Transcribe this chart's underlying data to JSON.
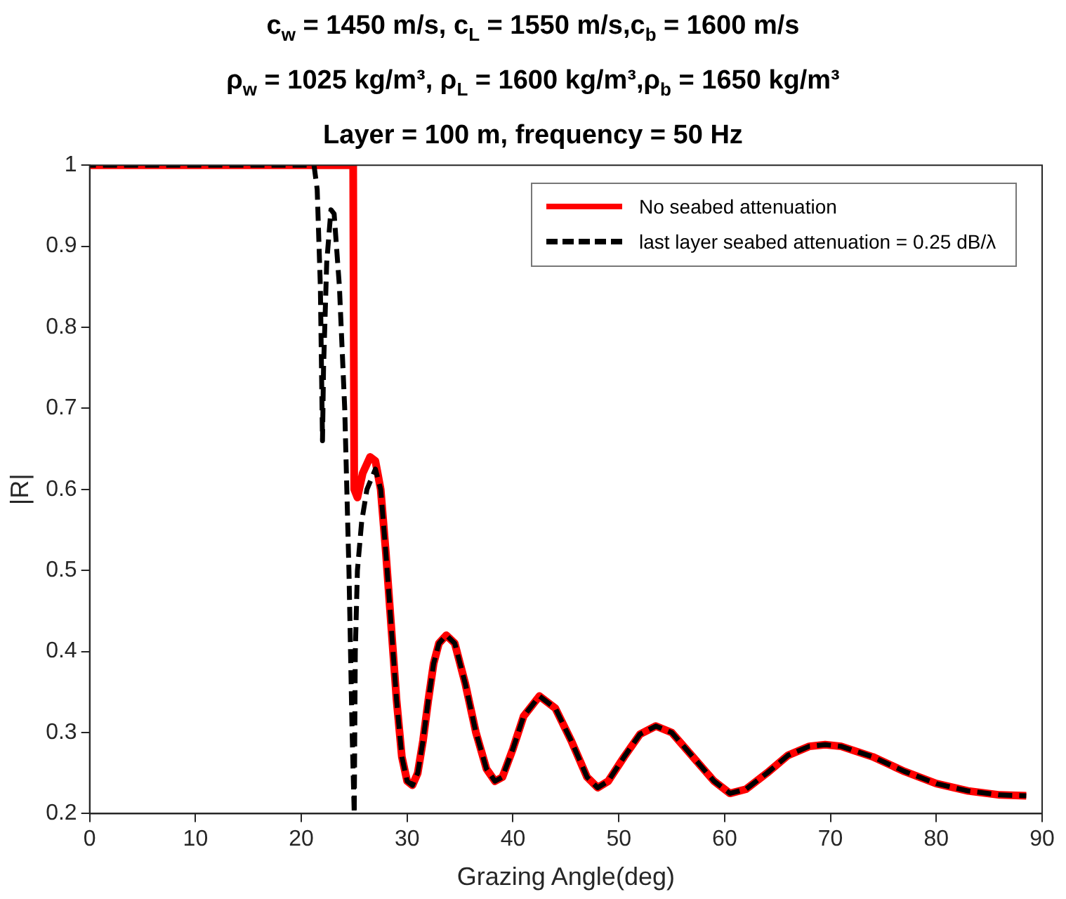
{
  "chart_data": {
    "type": "line",
    "title": "c$_{w}$ = 1450 m/s, c$_{L}$ = 1550 m/s,c$_{b}$ = 1600 m/s\nρ$_{w}$ = 1025 kg/m³, ρ$_{L}$ = 1600 kg/m³,ρ$_{b}$ = 1650 kg/m³\nLayer = 100 m, frequency = 50 Hz",
    "xlabel": "Grazing Angle(deg)",
    "ylabel": "|R|",
    "xlim": [
      0,
      90
    ],
    "xticks": [
      0,
      10,
      20,
      30,
      40,
      50,
      60,
      70,
      80,
      90
    ],
    "ylim": [
      0.2,
      1
    ],
    "yticks": [
      0.2,
      0.3,
      0.4,
      0.5,
      0.6,
      0.7,
      0.8,
      0.9,
      1
    ],
    "grid": false,
    "legend": "top right",
    "marker": "none",
    "series": [
      {
        "name": "No seabed attenuation",
        "color": "#ff0000",
        "line_style": "solid",
        "x": [
          0,
          24.9,
          25,
          25.3,
          25.8,
          26.5,
          27,
          27.5,
          28,
          28.5,
          29,
          29.5,
          30,
          30.5,
          31,
          31.5,
          32,
          32.5,
          33,
          33.7,
          34.5,
          35.5,
          36.5,
          37.5,
          38.3,
          39,
          40,
          41,
          42.5,
          44,
          45.5,
          47,
          48,
          49,
          50.5,
          52,
          53.5,
          55,
          57,
          59,
          60.5,
          62,
          64,
          66,
          68,
          69.5,
          71,
          74,
          77,
          80,
          83,
          86,
          88.5
        ],
        "values": [
          1,
          1,
          0.6,
          0.59,
          0.62,
          0.64,
          0.635,
          0.6,
          0.52,
          0.43,
          0.34,
          0.27,
          0.24,
          0.235,
          0.25,
          0.29,
          0.34,
          0.385,
          0.41,
          0.42,
          0.41,
          0.36,
          0.3,
          0.255,
          0.24,
          0.245,
          0.28,
          0.32,
          0.345,
          0.33,
          0.29,
          0.245,
          0.232,
          0.24,
          0.27,
          0.298,
          0.308,
          0.3,
          0.27,
          0.24,
          0.225,
          0.23,
          0.25,
          0.272,
          0.283,
          0.285,
          0.283,
          0.27,
          0.252,
          0.237,
          0.228,
          0.223,
          0.222
        ]
      },
      {
        "name": "last layer seabed attenuation = 0.25 dB/λ",
        "color": "#000000",
        "line_style": "dashed",
        "x": [
          0,
          21.2,
          21.5,
          21.8,
          22,
          22.1,
          22.4,
          22.8,
          23.1,
          23.6,
          24.1,
          24.5,
          24.8,
          25,
          25.1,
          25.3,
          25.7,
          26.2,
          27,
          27.5,
          28,
          28.5,
          29,
          29.5,
          30,
          30.5,
          31,
          31.5,
          32,
          32.5,
          33,
          33.7,
          34.5,
          35.5,
          36.5,
          37.5,
          38.3,
          39,
          40,
          41,
          42.5,
          44,
          45.5,
          47,
          48,
          49,
          50.5,
          52,
          53.5,
          55,
          57,
          59,
          60.5,
          62,
          64,
          66,
          68,
          69.5,
          71,
          74,
          77,
          80,
          83,
          86,
          88.5
        ],
        "values": [
          1,
          1,
          0.97,
          0.85,
          0.66,
          0.75,
          0.88,
          0.945,
          0.94,
          0.85,
          0.7,
          0.5,
          0.3,
          0.2,
          0.4,
          0.5,
          0.56,
          0.6,
          0.625,
          0.6,
          0.52,
          0.43,
          0.34,
          0.27,
          0.24,
          0.235,
          0.25,
          0.29,
          0.34,
          0.385,
          0.41,
          0.42,
          0.41,
          0.36,
          0.3,
          0.255,
          0.24,
          0.245,
          0.28,
          0.32,
          0.345,
          0.33,
          0.29,
          0.245,
          0.232,
          0.24,
          0.27,
          0.298,
          0.308,
          0.3,
          0.27,
          0.24,
          0.225,
          0.23,
          0.25,
          0.272,
          0.283,
          0.285,
          0.283,
          0.27,
          0.252,
          0.237,
          0.228,
          0.223,
          0.222
        ]
      }
    ]
  }
}
